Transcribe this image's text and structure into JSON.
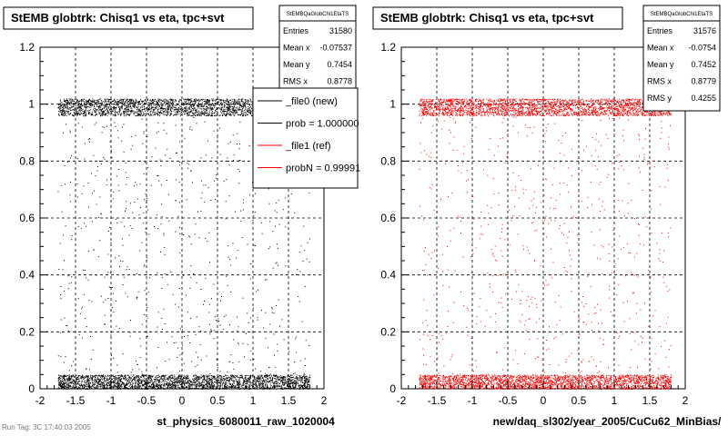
{
  "footer_text": "Run Tag: 3C 17:40:03 2005",
  "legend": {
    "entries": [
      {
        "label": "_file0 (new)",
        "color": "#000000"
      },
      {
        "label": "prob = 1.000000",
        "color": "#000000"
      },
      {
        "label": "_file1 (ref)",
        "color": "#ff0000"
      },
      {
        "label": "probN = 0.99991",
        "color": "#ff0000"
      }
    ]
  },
  "chart_data": [
    {
      "type": "scatter",
      "title": "StEMB globtrk: Chisq1 vs eta, tpc+svt",
      "xlabel": "st_physics_6080011_raw_1020004",
      "ylabel": "",
      "xlim": [
        -2,
        2
      ],
      "ylim": [
        0,
        1.2
      ],
      "x_ticks": [
        "-2",
        "-1.5",
        "-1",
        "-0.5",
        "0",
        "0.5",
        "1",
        "1.5",
        "2"
      ],
      "y_ticks": [
        "0",
        "0.2",
        "0.4",
        "0.6",
        "0.8",
        "1",
        "1.2"
      ],
      "grid": true,
      "marker_color": "#000000",
      "stats": {
        "name": "StEMBQaGlobChi1EtaTS",
        "rows": [
          {
            "label": "Entries",
            "value": "31580"
          },
          {
            "label": "Mean x",
            "value": "-0.07537"
          },
          {
            "label": "Mean y",
            "value": "0.7454"
          },
          {
            "label": "RMS x",
            "value": "0.8778"
          }
        ]
      },
      "bands": [
        {
          "x": [
            -1.75,
            1.8
          ],
          "y": [
            0.96,
            1.02
          ],
          "density": "high"
        },
        {
          "x": [
            -1.75,
            1.8
          ],
          "y": [
            0.0,
            0.05
          ],
          "density": "high"
        },
        {
          "x": [
            -1.75,
            1.8
          ],
          "y": [
            0.05,
            0.96
          ],
          "density": "low"
        }
      ]
    },
    {
      "type": "scatter",
      "title": "StEMB globtrk: Chisq1 vs eta, tpc+svt",
      "xlabel": "new/daq_sl302/year_2005/CuCu62_MinBias/",
      "ylabel": "",
      "xlim": [
        -2,
        2
      ],
      "ylim": [
        0,
        1.2
      ],
      "x_ticks": [
        "-2",
        "-1.5",
        "-1",
        "-0.5",
        "0",
        "0.5",
        "1",
        "1.5",
        "2"
      ],
      "y_ticks": [
        "0",
        "0.2",
        "0.4",
        "0.6",
        "0.8",
        "1",
        "1.2"
      ],
      "grid": true,
      "marker_color": "#ff0000",
      "stats": {
        "name": "StEMBQaGlobChi1EtaTS",
        "rows": [
          {
            "label": "Entries",
            "value": "31576"
          },
          {
            "label": "Mean x",
            "value": "-0.0754"
          },
          {
            "label": "Mean y",
            "value": "0.7452"
          },
          {
            "label": "RMS x",
            "value": "0.8779"
          },
          {
            "label": "RMS y",
            "value": "0.4255"
          }
        ]
      },
      "bands": [
        {
          "x": [
            -1.75,
            1.8
          ],
          "y": [
            0.96,
            1.02
          ],
          "density": "high"
        },
        {
          "x": [
            -1.75,
            1.8
          ],
          "y": [
            0.0,
            0.05
          ],
          "density": "high"
        },
        {
          "x": [
            -1.75,
            1.8
          ],
          "y": [
            0.05,
            0.96
          ],
          "density": "low"
        }
      ]
    }
  ]
}
